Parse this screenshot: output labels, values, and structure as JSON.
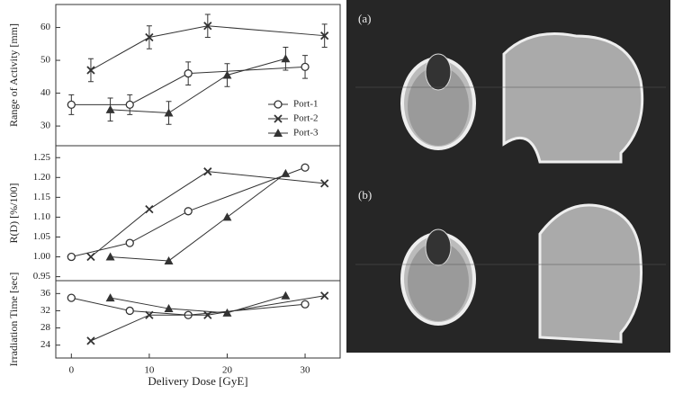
{
  "chart_data": [
    {
      "type": "line",
      "ylabel": "Range of Activity [mm]",
      "xlim": [
        -2,
        34.5
      ],
      "ylim": [
        24,
        67
      ],
      "yticks": [
        30,
        40,
        50,
        60
      ],
      "legend": "right",
      "series": [
        {
          "name": "Port-1",
          "marker": "circle",
          "color": "#333333",
          "x": [
            0,
            7.5,
            15,
            30
          ],
          "values": [
            36.5,
            36.5,
            46,
            48
          ],
          "errors": [
            3,
            3,
            3.5,
            3.5
          ]
        },
        {
          "name": "Port-2",
          "marker": "x",
          "color": "#333333",
          "x": [
            2.5,
            10,
            17.5,
            32.5
          ],
          "values": [
            47,
            57,
            60.5,
            57.5
          ],
          "errors": [
            3.5,
            3.5,
            3.5,
            3.5
          ]
        },
        {
          "name": "Port-3",
          "marker": "triangle",
          "color": "#333333",
          "x": [
            5,
            12.5,
            20,
            27.5
          ],
          "values": [
            35,
            34,
            45.5,
            50.5
          ],
          "errors": [
            3.5,
            3.5,
            3.5,
            3.5
          ]
        }
      ]
    },
    {
      "type": "line",
      "ylabel": "R(D) [%/100]",
      "xlim": [
        -2,
        34.5
      ],
      "ylim": [
        0.94,
        1.28
      ],
      "yticks": [
        {
          "value": 0.95,
          "label": "0.95"
        },
        {
          "value": 1,
          "label": "1.00"
        },
        1.05,
        {
          "value": 1.1,
          "label": "1.10"
        },
        1.15,
        {
          "value": 1.2,
          "label": "1.20"
        },
        1.25
      ],
      "series": [
        {
          "name": "Port-1",
          "marker": "circle",
          "color": "#333333",
          "x": [
            0,
            7.5,
            15,
            30
          ],
          "values": [
            1.0,
            1.035,
            1.115,
            1.225
          ]
        },
        {
          "name": "Port-2",
          "marker": "x",
          "color": "#333333",
          "x": [
            2.5,
            10,
            17.5,
            32.5
          ],
          "values": [
            1.0,
            1.12,
            1.215,
            1.185
          ]
        },
        {
          "name": "Port-3",
          "marker": "triangle",
          "color": "#333333",
          "x": [
            5,
            12.5,
            20,
            27.5
          ],
          "values": [
            1.0,
            0.99,
            1.1,
            1.21
          ]
        }
      ]
    },
    {
      "type": "line",
      "ylabel": "Irradiation Time [sec]",
      "xlabel": "Delivery Dose [GyE]",
      "xlim": [
        -2,
        34.5
      ],
      "xticks": [
        0,
        10,
        20,
        30
      ],
      "ylim": [
        21,
        39
      ],
      "yticks": [
        24,
        28,
        32,
        36
      ],
      "series": [
        {
          "name": "Port-1",
          "marker": "circle",
          "color": "#333333",
          "x": [
            0,
            7.5,
            15,
            30
          ],
          "values": [
            35,
            32,
            31,
            33.5
          ]
        },
        {
          "name": "Port-2",
          "marker": "x",
          "color": "#333333",
          "x": [
            2.5,
            10,
            17.5,
            32.5
          ],
          "values": [
            25,
            31,
            31,
            35.5
          ]
        },
        {
          "name": "Port-3",
          "marker": "triangle",
          "color": "#333333",
          "x": [
            5,
            12.5,
            20,
            27.5
          ],
          "values": [
            35,
            32.5,
            31.5,
            35.5
          ]
        }
      ]
    }
  ],
  "panels": [
    {
      "label": "(a)"
    },
    {
      "label": "(b)"
    }
  ]
}
